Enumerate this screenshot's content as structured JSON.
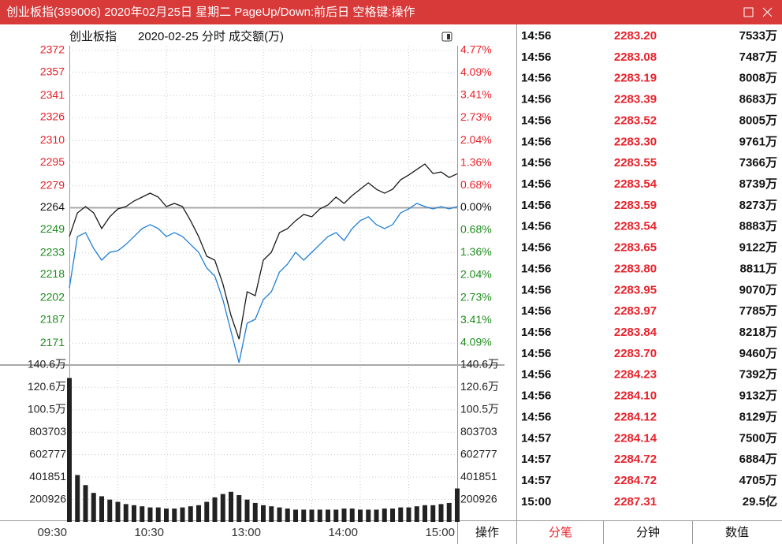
{
  "window": {
    "title": "创业板指(399006) 2020年02月25日 星期二 PageUp/Down:前后日 空格键:操作"
  },
  "chart_data": {
    "type": "line",
    "title": "创业板指",
    "subtitle": "2020-02-25 分时 成交额(万)",
    "x": [
      0,
      5,
      10,
      15,
      20,
      25,
      30,
      35,
      40,
      45,
      50,
      55,
      60,
      65,
      70,
      75,
      80,
      85,
      90,
      95,
      100,
      105,
      110,
      115,
      120,
      125,
      130,
      135,
      140,
      145,
      150,
      155,
      160,
      165,
      170,
      175,
      180,
      185,
      190,
      195,
      200,
      205,
      210,
      215,
      220,
      225,
      230,
      235,
      240
    ],
    "xlim": [
      0,
      240
    ],
    "xticks": [
      {
        "value": 0,
        "label": "09:30"
      },
      {
        "value": 60,
        "label": "10:30"
      },
      {
        "value": 120,
        "label": "13:00"
      },
      {
        "value": 180,
        "label": "14:00"
      },
      {
        "value": 240,
        "label": "15:00"
      }
    ],
    "ylim": [
      2156,
      2372
    ],
    "yticks": [
      2372,
      2357,
      2341,
      2326,
      2310,
      2295,
      2279,
      2264,
      2249,
      2233,
      2218,
      2202,
      2187,
      2171
    ],
    "reference_line": 2264,
    "y2lim": [
      -4.77,
      4.77
    ],
    "y2ticks": [
      {
        "value": 4.77,
        "label": "4.77%"
      },
      {
        "value": 4.09,
        "label": "4.09%"
      },
      {
        "value": 3.41,
        "label": "3.41%"
      },
      {
        "value": 2.73,
        "label": "2.73%"
      },
      {
        "value": 2.04,
        "label": "2.04%"
      },
      {
        "value": 1.36,
        "label": "1.36%"
      },
      {
        "value": 0.68,
        "label": "0.68%"
      },
      {
        "value": 0,
        "label": "0.00%"
      },
      {
        "value": -0.68,
        "label": "0.68%"
      },
      {
        "value": -1.36,
        "label": "1.36%"
      },
      {
        "value": -2.04,
        "label": "2.04%"
      },
      {
        "value": -2.73,
        "label": "2.73%"
      },
      {
        "value": -3.41,
        "label": "3.41%"
      },
      {
        "value": -4.09,
        "label": "4.09%"
      }
    ],
    "series": [
      {
        "color": "#1a1a1a",
        "values": [
          2244.2,
          2260.5,
          2264.8,
          2260.5,
          2249.7,
          2257.8,
          2263.2,
          2264.8,
          2268.6,
          2271.3,
          2274.0,
          2271.3,
          2264.8,
          2267.0,
          2264.8,
          2255.1,
          2244.2,
          2230.7,
          2228.0,
          2211.7,
          2190.1,
          2173.8,
          2206.3,
          2203.6,
          2228.0,
          2233.4,
          2246.9,
          2249.7,
          2255.1,
          2259.4,
          2257.8,
          2263.2,
          2265.9,
          2271.3,
          2267.0,
          2272.4,
          2276.7,
          2281.1,
          2276.7,
          2274.0,
          2276.7,
          2283.2,
          2286.5,
          2290.3,
          2294.0,
          2287.5,
          2288.6,
          2284.8,
          2287.3
        ]
      },
      {
        "color": "#1f7fd6",
        "values": [
          2209.0,
          2244.2,
          2246.9,
          2236.1,
          2228.0,
          2233.4,
          2234.5,
          2238.8,
          2244.2,
          2249.7,
          2252.4,
          2249.7,
          2244.2,
          2246.9,
          2244.2,
          2238.8,
          2233.4,
          2222.6,
          2217.1,
          2200.9,
          2179.2,
          2157.6,
          2184.7,
          2187.4,
          2200.9,
          2206.3,
          2219.8,
          2225.3,
          2233.4,
          2228.0,
          2233.4,
          2238.8,
          2244.2,
          2246.9,
          2241.5,
          2249.7,
          2255.1,
          2257.8,
          2252.4,
          2249.7,
          2252.4,
          2260.5,
          2263.2,
          2267.0,
          2264.8,
          2263.2,
          2264.8,
          2263.2,
          2264.8
        ]
      }
    ],
    "volume": {
      "color": "#222222",
      "ylim": [
        0,
        1406000
      ],
      "yticks": [
        {
          "value": 1406000,
          "label": "140.6万"
        },
        {
          "value": 1206000,
          "label": "120.6万"
        },
        {
          "value": 1005000,
          "label": "100.5万"
        },
        803703,
        602777,
        401851,
        200926
      ],
      "values": [
        1290000,
        420000,
        330000,
        260000,
        230000,
        200000,
        180000,
        160000,
        150000,
        140000,
        130000,
        130000,
        120000,
        120000,
        130000,
        140000,
        150000,
        180000,
        220000,
        250000,
        270000,
        240000,
        200000,
        170000,
        150000,
        140000,
        130000,
        120000,
        110000,
        110000,
        110000,
        110000,
        110000,
        110000,
        120000,
        120000,
        110000,
        110000,
        110000,
        120000,
        120000,
        130000,
        130000,
        140000,
        150000,
        150000,
        160000,
        170000,
        300000
      ]
    }
  },
  "operate_button": "操作",
  "ticks_table": {
    "rows": [
      [
        "14:56",
        "2283.20",
        "7533万"
      ],
      [
        "14:56",
        "2283.08",
        "7487万"
      ],
      [
        "14:56",
        "2283.19",
        "8008万"
      ],
      [
        "14:56",
        "2283.39",
        "8683万"
      ],
      [
        "14:56",
        "2283.52",
        "8005万"
      ],
      [
        "14:56",
        "2283.30",
        "9761万"
      ],
      [
        "14:56",
        "2283.55",
        "7366万"
      ],
      [
        "14:56",
        "2283.54",
        "8739万"
      ],
      [
        "14:56",
        "2283.59",
        "8273万"
      ],
      [
        "14:56",
        "2283.54",
        "8883万"
      ],
      [
        "14:56",
        "2283.65",
        "9122万"
      ],
      [
        "14:56",
        "2283.80",
        "8811万"
      ],
      [
        "14:56",
        "2283.95",
        "9070万"
      ],
      [
        "14:56",
        "2283.97",
        "7785万"
      ],
      [
        "14:56",
        "2283.84",
        "8218万"
      ],
      [
        "14:56",
        "2283.70",
        "9460万"
      ],
      [
        "14:56",
        "2284.23",
        "7392万"
      ],
      [
        "14:56",
        "2284.10",
        "9132万"
      ],
      [
        "14:56",
        "2284.12",
        "8129万"
      ],
      [
        "14:57",
        "2284.14",
        "7500万"
      ],
      [
        "14:57",
        "2284.72",
        "6884万"
      ],
      [
        "14:57",
        "2284.72",
        "4705万"
      ],
      [
        "15:00",
        "2287.31",
        "29.5亿"
      ]
    ]
  },
  "tabs": [
    "分笔",
    "分钟",
    "数值"
  ],
  "active_tab": 0
}
